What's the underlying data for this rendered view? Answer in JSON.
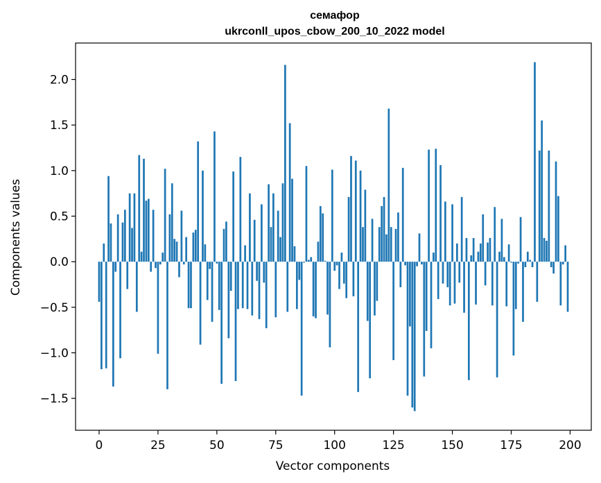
{
  "chart_data": {
    "type": "bar",
    "title": "семафор",
    "subtitle": "ukrconll_upos_cbow_200_10_2022 model",
    "xlabel": "Vector components",
    "ylabel": "Components values",
    "xlim": [
      -10,
      209
    ],
    "ylim": [
      -1.85,
      2.4
    ],
    "xticks": [
      0,
      25,
      50,
      75,
      100,
      125,
      150,
      175,
      200
    ],
    "yticks": [
      -1.5,
      -1.0,
      -0.5,
      0.0,
      0.5,
      1.0,
      1.5,
      2.0
    ],
    "ytick_labels": [
      "−1.5",
      "−1.0",
      "−0.5",
      "0.0",
      "0.5",
      "1.0",
      "1.5",
      "2.0"
    ],
    "bar_color": "#1f77b4",
    "grid": false,
    "values": [
      -0.44,
      -1.18,
      0.2,
      -1.17,
      0.94,
      0.42,
      -1.37,
      -0.11,
      0.52,
      -1.06,
      0.43,
      0.57,
      -0.3,
      0.75,
      0.37,
      0.75,
      -0.55,
      1.17,
      0.11,
      1.13,
      0.67,
      0.69,
      -0.11,
      0.57,
      -0.07,
      -1.01,
      -0.03,
      0.1,
      1.02,
      -1.4,
      0.52,
      0.86,
      0.25,
      0.22,
      -0.17,
      0.56,
      -0.03,
      0.27,
      -0.51,
      -0.51,
      0.32,
      0.35,
      1.32,
      -0.91,
      1.0,
      0.19,
      -0.42,
      -0.08,
      -0.66,
      1.43,
      -0.02,
      -0.53,
      -1.34,
      0.36,
      0.44,
      -0.84,
      -0.32,
      0.99,
      -1.31,
      -0.52,
      1.15,
      -0.51,
      0.18,
      -0.52,
      0.75,
      -0.59,
      0.46,
      -0.21,
      -0.63,
      0.63,
      -0.23,
      -0.73,
      0.85,
      0.38,
      0.75,
      -0.61,
      0.56,
      0.27,
      0.86,
      2.16,
      -0.55,
      1.52,
      0.91,
      0.17,
      -0.52,
      -0.2,
      -1.47,
      -0.01,
      1.05,
      0.02,
      0.05,
      -0.6,
      -0.62,
      0.22,
      0.61,
      0.53,
      0.01,
      -0.58,
      -0.94,
      1.01,
      -0.1,
      -0.04,
      -0.3,
      0.1,
      -0.24,
      -0.4,
      0.71,
      1.16,
      -0.38,
      1.11,
      -1.43,
      1.0,
      0.38,
      0.79,
      -0.65,
      -1.28,
      0.47,
      -0.59,
      -0.43,
      0.38,
      0.61,
      0.71,
      0.3,
      1.68,
      0.38,
      -1.08,
      0.36,
      0.54,
      -0.28,
      1.03,
      -0.04,
      -1.47,
      -0.71,
      -1.6,
      -1.64,
      -0.05,
      0.31,
      -0.03,
      -1.26,
      -0.76,
      1.23,
      -0.95,
      0.1,
      1.24,
      -0.41,
      1.06,
      -0.24,
      0.66,
      -0.28,
      -0.48,
      0.63,
      -0.46,
      0.2,
      -0.23,
      0.71,
      -0.56,
      0.26,
      -1.3,
      0.07,
      0.26,
      -0.47,
      0.11,
      0.2,
      0.52,
      -0.26,
      0.21,
      0.26,
      -0.48,
      0.6,
      -1.27,
      0.11,
      0.47,
      0.05,
      -0.49,
      0.19,
      -0.01,
      -1.03,
      -0.52,
      -0.02,
      0.49,
      -0.66,
      -0.06,
      0.11,
      0.02,
      -0.06,
      2.19,
      -0.44,
      1.22,
      1.55,
      0.26,
      0.23,
      1.22,
      -0.06,
      -0.13,
      1.1,
      0.72,
      -0.48,
      -0.03,
      0.18,
      -0.55
    ]
  }
}
